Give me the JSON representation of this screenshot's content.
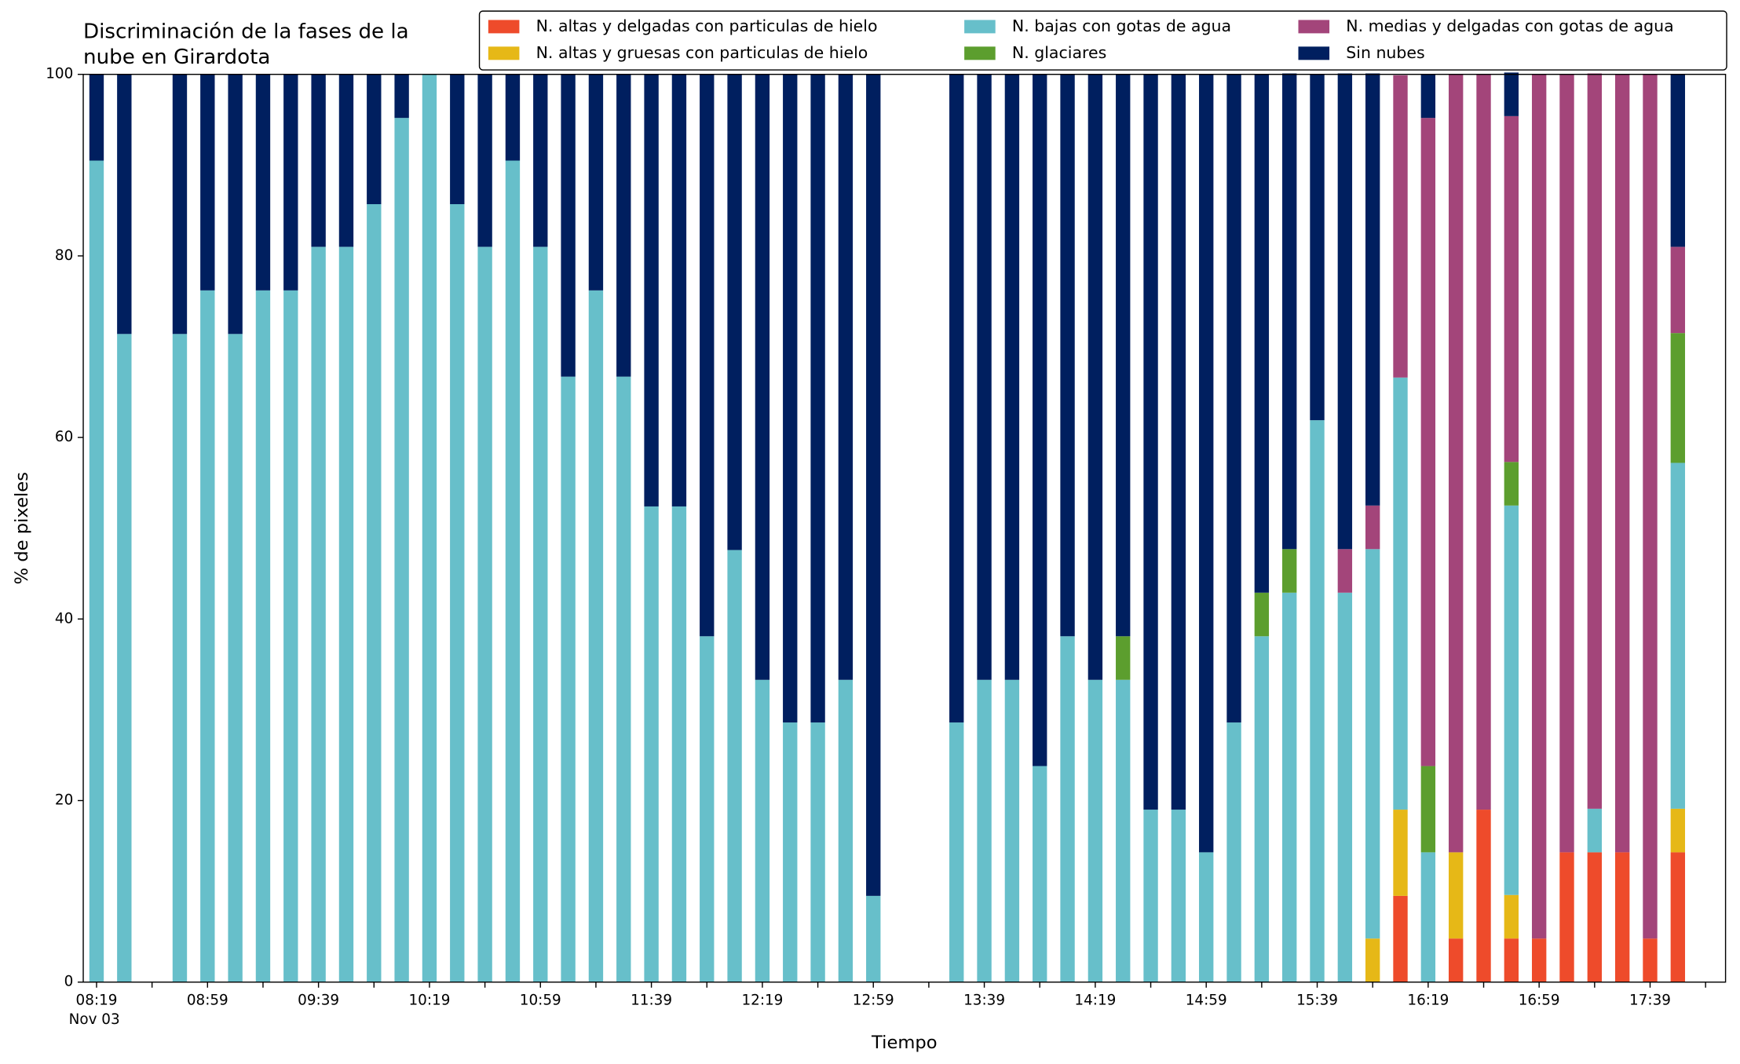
{
  "chart_data": {
    "type": "stacked_bar",
    "title": [
      "Discriminación de la fases de la",
      "nube en Girardota"
    ],
    "xlabel": "Tiempo",
    "ylabel": "% de pixeles",
    "x_date_label": "Nov 03",
    "categories": [
      "08:19",
      null,
      null,
      null,
      "08:59",
      null,
      null,
      null,
      "09:39",
      null,
      null,
      null,
      "10:19",
      null,
      null,
      null,
      "10:59",
      null,
      null,
      null,
      "11:39",
      null,
      null,
      null,
      "12:19",
      null,
      null,
      null,
      "12:59",
      null,
      null,
      null,
      "13:39",
      null,
      null,
      null,
      "14:19",
      null,
      null,
      null,
      "14:59",
      null,
      null,
      null,
      "15:39",
      null,
      null,
      null,
      "16:19",
      null,
      null,
      null,
      "16:59",
      null,
      null,
      null,
      "17:39",
      null
    ],
    "ylim": [
      0,
      100
    ],
    "yticks": [
      0,
      20,
      40,
      60,
      80,
      100
    ],
    "grid": false,
    "legend": "top-right",
    "series": [
      {
        "name": "N. altas y delgadas con particulas de hielo",
        "color": "#ee4b2b",
        "values": [
          0,
          0,
          null,
          0,
          0,
          0,
          0,
          0,
          0,
          0,
          0,
          0,
          0,
          0,
          0,
          0,
          0,
          0,
          0,
          0,
          0,
          0,
          0,
          0,
          0,
          0,
          0,
          0,
          0,
          null,
          null,
          0,
          0,
          0,
          0,
          0,
          0,
          0,
          0,
          0,
          0,
          0,
          0,
          0,
          0,
          0,
          0,
          9.5,
          0,
          4.8,
          19.0,
          4.8,
          4.8,
          14.3,
          14.3,
          14.3,
          4.8,
          14.3
        ]
      },
      {
        "name": "N. altas y gruesas con particulas de hielo",
        "color": "#e6b817",
        "values": [
          0,
          0,
          null,
          0,
          0,
          0,
          0,
          0,
          0,
          0,
          0,
          0,
          0,
          0,
          0,
          0,
          0,
          0,
          0,
          0,
          0,
          0,
          0,
          0,
          0,
          0,
          0,
          0,
          0,
          null,
          null,
          0,
          0,
          0,
          0,
          0,
          0,
          0,
          0,
          0,
          0,
          0,
          0,
          0,
          0,
          0,
          4.8,
          9.5,
          0,
          9.5,
          0,
          4.8,
          0,
          0,
          0,
          0,
          0,
          4.8
        ]
      },
      {
        "name": "N. bajas con gotas de agua",
        "color": "#67bfca",
        "values": [
          90.5,
          71.4,
          null,
          71.4,
          76.2,
          71.4,
          76.2,
          76.2,
          81.0,
          81.0,
          85.7,
          95.2,
          100,
          85.7,
          81.0,
          90.5,
          81.0,
          66.7,
          76.2,
          66.7,
          52.4,
          52.4,
          38.1,
          47.6,
          33.3,
          28.6,
          28.6,
          33.3,
          9.5,
          null,
          null,
          28.6,
          33.3,
          33.3,
          23.8,
          38.1,
          33.3,
          33.3,
          19.0,
          19.0,
          14.3,
          28.6,
          38.1,
          42.9,
          61.9,
          42.9,
          42.9,
          47.6,
          14.3,
          0,
          0,
          42.9,
          0,
          0,
          4.8,
          0,
          0,
          38.1
        ]
      },
      {
        "name": "N. glaciares",
        "color": "#5c9e2e",
        "values": [
          0,
          0,
          null,
          0,
          0,
          0,
          0,
          0,
          0,
          0,
          0,
          0,
          0,
          0,
          0,
          0,
          0,
          0,
          0,
          0,
          0,
          0,
          0,
          0,
          0,
          0,
          0,
          0,
          0,
          null,
          null,
          0,
          0,
          0,
          0,
          0,
          0,
          4.8,
          0,
          0,
          0,
          0,
          4.8,
          4.8,
          0,
          0,
          0,
          0,
          9.5,
          0,
          0,
          4.8,
          0,
          0,
          0,
          0,
          0,
          14.3
        ]
      },
      {
        "name": "N. medias y delgadas con gotas de agua",
        "color": "#a3457a",
        "values": [
          0,
          0,
          null,
          0,
          0,
          0,
          0,
          0,
          0,
          0,
          0,
          0,
          0,
          0,
          0,
          0,
          0,
          0,
          0,
          0,
          0,
          0,
          0,
          0,
          0,
          0,
          0,
          0,
          0,
          null,
          null,
          0,
          0,
          0,
          0,
          0,
          0,
          0,
          0,
          0,
          0,
          0,
          0,
          0,
          0,
          4.8,
          4.8,
          33.3,
          71.4,
          85.7,
          81.0,
          38.1,
          95.2,
          85.7,
          81.0,
          85.7,
          95.2,
          9.5
        ]
      },
      {
        "name": "Sin nubes",
        "color": "#001f5f",
        "values": [
          9.5,
          28.6,
          null,
          28.6,
          23.8,
          28.6,
          23.8,
          23.8,
          19.0,
          19.0,
          14.3,
          4.8,
          0,
          14.3,
          19.0,
          9.5,
          19.0,
          33.3,
          23.8,
          33.3,
          47.6,
          47.6,
          61.9,
          52.4,
          66.7,
          71.4,
          71.4,
          66.7,
          90.5,
          null,
          null,
          71.4,
          66.7,
          66.7,
          76.2,
          61.9,
          66.7,
          61.9,
          81.0,
          81.0,
          85.7,
          71.4,
          57.1,
          52.4,
          38.1,
          52.4,
          47.6,
          0,
          4.8,
          0,
          0,
          4.8,
          0,
          0,
          0,
          0,
          0,
          19.0
        ]
      }
    ]
  }
}
